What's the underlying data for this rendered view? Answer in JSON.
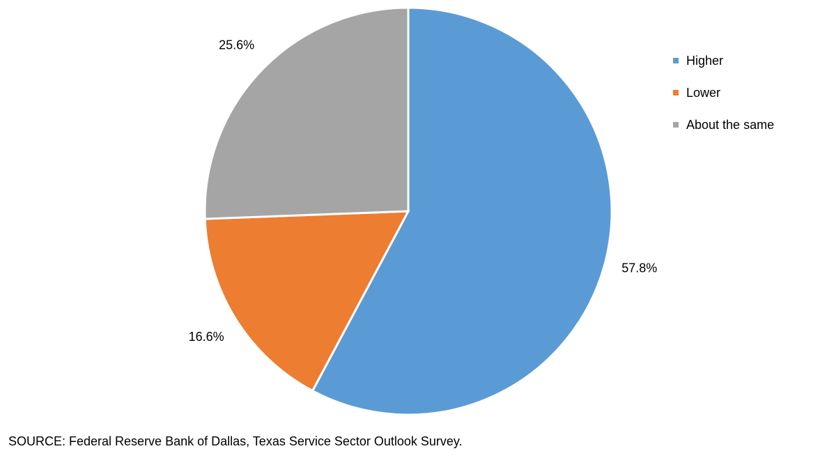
{
  "chart_data": {
    "type": "pie",
    "categories": [
      "Higher",
      "Lower",
      "About the same"
    ],
    "values": [
      57.8,
      16.6,
      25.6
    ],
    "data_labels": [
      "57.8%",
      "16.6%",
      "25.6%"
    ],
    "colors": [
      "#5B9BD5",
      "#ED7D31",
      "#A5A5A5"
    ],
    "legend_position": "top-right",
    "start": "12 o'clock",
    "direction": "clockwise"
  },
  "source_note": "SOURCE: Federal Reserve Bank of Dallas, Texas Service Sector Outlook Survey."
}
